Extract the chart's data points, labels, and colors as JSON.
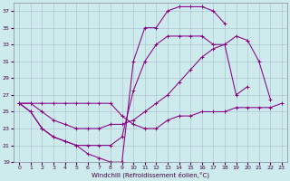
{
  "xlabel": "Windchill (Refroidissement éolien,°C)",
  "xlim": [
    -0.5,
    23.5
  ],
  "ylim": [
    19,
    38
  ],
  "yticks": [
    19,
    21,
    23,
    25,
    27,
    29,
    31,
    33,
    35,
    37
  ],
  "xticks": [
    0,
    1,
    2,
    3,
    4,
    5,
    6,
    7,
    8,
    9,
    10,
    11,
    12,
    13,
    14,
    15,
    16,
    17,
    18,
    19,
    20,
    21,
    22,
    23
  ],
  "bg_color": "#cdeaed",
  "line_color": "#880088",
  "series": [
    {
      "x": [
        0,
        1,
        2,
        3,
        4,
        5,
        6,
        7,
        8,
        9,
        10,
        11,
        12,
        13,
        14,
        15,
        16,
        17,
        18
      ],
      "y": [
        26,
        25,
        23,
        22,
        21.5,
        21,
        20,
        19.5,
        19,
        19,
        31,
        35,
        35,
        37,
        37.5,
        37.5,
        37.5,
        37,
        35.5
      ]
    },
    {
      "x": [
        0,
        1,
        2,
        3,
        4,
        5,
        6,
        7,
        8,
        9,
        10,
        11,
        12,
        13,
        14,
        15,
        16,
        17,
        18,
        19,
        20
      ],
      "y": [
        26,
        25,
        23,
        22,
        21.5,
        21,
        21,
        21,
        21,
        22,
        27.5,
        31,
        33,
        34,
        34,
        34,
        34,
        33,
        33,
        27,
        28
      ]
    },
    {
      "x": [
        0,
        1,
        2,
        3,
        4,
        5,
        6,
        7,
        8,
        9,
        10,
        11,
        12,
        13,
        14,
        15,
        16,
        17,
        18,
        19,
        20,
        21,
        22
      ],
      "y": [
        26,
        26,
        25,
        24,
        23.5,
        23,
        23,
        23,
        23.5,
        23.5,
        24,
        25,
        26,
        27,
        28.5,
        30,
        31.5,
        32.5,
        33,
        34,
        33.5,
        31,
        26.5
      ]
    },
    {
      "x": [
        0,
        1,
        2,
        3,
        4,
        5,
        6,
        7,
        8,
        9,
        10,
        11,
        12,
        13,
        14,
        15,
        16,
        17,
        18,
        19,
        20,
        21,
        22,
        23
      ],
      "y": [
        26,
        26,
        26,
        26,
        26,
        26,
        26,
        26,
        26,
        24.5,
        23.5,
        23,
        23,
        24,
        24.5,
        24.5,
        25,
        25,
        25,
        25.5,
        25.5,
        25.5,
        25.5,
        26
      ]
    }
  ]
}
